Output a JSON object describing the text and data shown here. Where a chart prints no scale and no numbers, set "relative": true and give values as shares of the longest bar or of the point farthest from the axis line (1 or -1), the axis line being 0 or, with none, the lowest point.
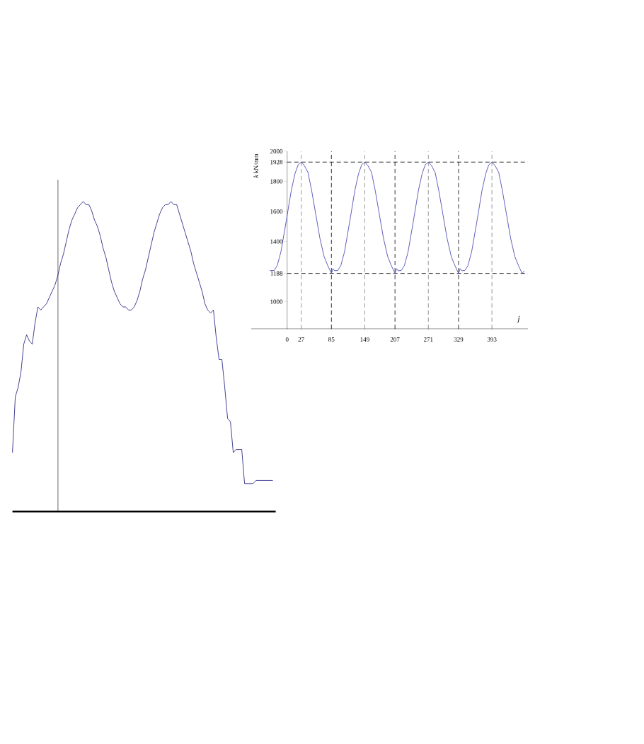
{
  "chart_data": [
    {
      "type": "line",
      "relative": true,
      "color": "#14147a",
      "categories": [
        null,
        null,
        null,
        null,
        null,
        null,
        null,
        null,
        null,
        null,
        null,
        null,
        null,
        null,
        null,
        null,
        null,
        null,
        null,
        null,
        null,
        null,
        null,
        null,
        null,
        null,
        null,
        null,
        null,
        null,
        null,
        null,
        null,
        null,
        null,
        null,
        null,
        null,
        null,
        null,
        null,
        null,
        null,
        null,
        null,
        null,
        null,
        null,
        null,
        null,
        null,
        null,
        null,
        null,
        null,
        null,
        null,
        null,
        null,
        null,
        null,
        null,
        null,
        null,
        null,
        null,
        null,
        null,
        null,
        null,
        null,
        null,
        null,
        null,
        null,
        null,
        null,
        null,
        null,
        null,
        null,
        null,
        null,
        null,
        null,
        null,
        null,
        null,
        null,
        null,
        null,
        null,
        null
      ],
      "values": [
        0.19,
        0.37,
        0.4,
        0.45,
        0.54,
        0.57,
        0.55,
        0.54,
        0.61,
        0.66,
        0.65,
        0.66,
        0.67,
        0.69,
        0.71,
        0.73,
        0.76,
        0.8,
        0.83,
        0.87,
        0.91,
        0.94,
        0.96,
        0.98,
        0.99,
        1.0,
        0.99,
        0.99,
        0.97,
        0.94,
        0.92,
        0.89,
        0.85,
        0.82,
        0.78,
        0.74,
        0.71,
        0.69,
        0.67,
        0.66,
        0.66,
        0.65,
        0.65,
        0.66,
        0.68,
        0.71,
        0.75,
        0.78,
        0.82,
        0.86,
        0.9,
        0.93,
        0.96,
        0.98,
        0.99,
        0.99,
        1.0,
        0.99,
        0.99,
        0.96,
        0.93,
        0.9,
        0.87,
        0.84,
        0.8,
        0.77,
        0.74,
        0.71,
        0.67,
        0.65,
        0.64,
        0.65,
        0.56,
        0.49,
        0.49,
        0.4,
        0.3,
        0.29,
        0.19,
        0.2,
        0.2,
        0.2,
        0.09,
        0.09,
        0.09,
        0.09,
        0.1,
        0.1,
        0.1,
        0.1,
        0.1,
        0.1,
        0.1
      ]
    },
    {
      "type": "line",
      "color": "#3838b0",
      "xlabel": "j",
      "ylabel": "*k*  kN/mm",
      "x": [
        -33,
        -25,
        -19,
        -12,
        -2,
        8,
        15,
        21,
        27,
        33,
        40,
        47,
        55,
        63,
        71,
        78,
        85,
        88,
        91,
        97,
        103,
        110,
        120,
        130,
        137,
        143,
        149,
        155,
        162,
        169,
        177,
        185,
        193,
        200,
        207,
        210,
        213,
        219,
        225,
        232,
        242,
        252,
        259,
        265,
        271,
        277,
        284,
        291,
        299,
        307,
        315,
        322,
        329,
        332,
        335,
        341,
        347,
        354,
        364,
        374,
        381,
        387,
        393,
        399,
        406,
        413,
        421,
        429,
        437,
        444,
        451,
        455
      ],
      "values": [
        1207,
        1207,
        1240,
        1330,
        1530,
        1740,
        1850,
        1910,
        1928,
        1905,
        1860,
        1740,
        1580,
        1420,
        1300,
        1240,
        1188,
        1220,
        1206,
        1207,
        1240,
        1330,
        1530,
        1740,
        1850,
        1910,
        1928,
        1905,
        1860,
        1740,
        1580,
        1420,
        1300,
        1240,
        1188,
        1220,
        1206,
        1207,
        1240,
        1330,
        1530,
        1740,
        1850,
        1910,
        1928,
        1905,
        1860,
        1740,
        1580,
        1420,
        1300,
        1240,
        1188,
        1220,
        1206,
        1207,
        1240,
        1330,
        1530,
        1740,
        1850,
        1910,
        1928,
        1905,
        1860,
        1740,
        1580,
        1420,
        1300,
        1240,
        1188,
        1205
      ],
      "xlim": [
        -69,
        462
      ],
      "ylim": [
        820,
        2000
      ],
      "xticks": [
        0,
        27,
        85,
        149,
        207,
        271,
        329,
        393
      ],
      "yticks": [
        1000,
        1188,
        1400,
        1600,
        1800,
        1928,
        2000
      ],
      "ref_lines": [
        {
          "axis": "x",
          "value": 27,
          "color": "#808080",
          "line_style": "dashed"
        },
        {
          "axis": "x",
          "value": 149,
          "color": "#808080",
          "line_style": "dashed"
        },
        {
          "axis": "x",
          "value": 271,
          "color": "#808080",
          "line_style": "dashed"
        },
        {
          "axis": "x",
          "value": 393,
          "color": "#808080",
          "line_style": "dashed"
        },
        {
          "axis": "x",
          "value": 85,
          "color": "#000000",
          "line_style": "dashed"
        },
        {
          "axis": "x",
          "value": 207,
          "color": "#000000",
          "line_style": "dashed"
        },
        {
          "axis": "x",
          "value": 329,
          "color": "#000000",
          "line_style": "dashed"
        },
        {
          "axis": "y",
          "value": 1928,
          "color": "#000000",
          "line_style": "dashed"
        },
        {
          "axis": "y",
          "value": 1188,
          "color": "#000000",
          "line_style": "dashed"
        }
      ]
    }
  ]
}
